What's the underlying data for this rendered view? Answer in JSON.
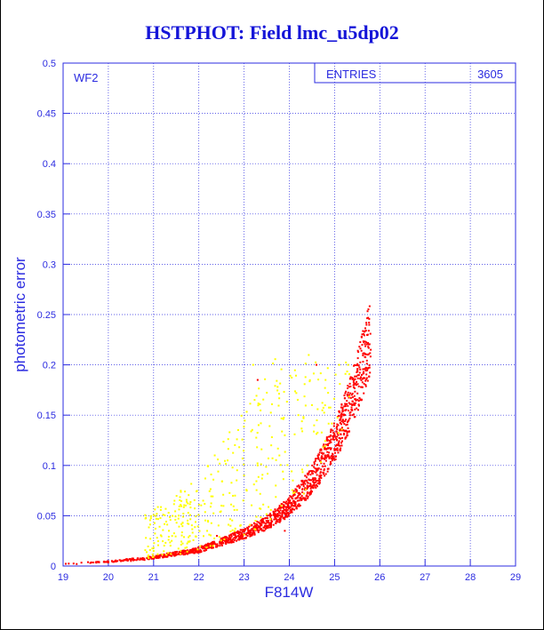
{
  "chart_data": {
    "type": "scatter",
    "title": "HSTPHOT: Field lmc_u5dp02",
    "xlabel": "F814W",
    "ylabel": "photometric error",
    "xlim": [
      19,
      29
    ],
    "ylim": [
      0,
      0.5
    ],
    "x_ticks": [
      "19",
      "20",
      "21",
      "22",
      "23",
      "24",
      "25",
      "26",
      "27",
      "28",
      "29"
    ],
    "y_ticks": [
      "0",
      "0.05",
      "0.1",
      "0.15",
      "0.2",
      "0.25",
      "0.3",
      "0.35",
      "0.4",
      "0.45",
      "0.5"
    ],
    "grid": true,
    "panel_label": "WF2",
    "stats_box": {
      "label": "ENTRIES",
      "value": "3605"
    },
    "series": [
      {
        "color": "#ff0000",
        "description_curve": [
          [
            19.0,
            0.002
          ],
          [
            20.0,
            0.004
          ],
          [
            21.0,
            0.008
          ],
          [
            22.0,
            0.015
          ],
          [
            23.0,
            0.03
          ],
          [
            23.5,
            0.04
          ],
          [
            24.0,
            0.055
          ],
          [
            24.5,
            0.08
          ],
          [
            25.0,
            0.115
          ],
          [
            25.3,
            0.145
          ],
          [
            25.5,
            0.17
          ],
          [
            25.7,
            0.2
          ],
          [
            25.8,
            0.215
          ]
        ],
        "points": [
          [
            19.3,
            0.002
          ],
          [
            19.6,
            0.003
          ],
          [
            19.9,
            0.004
          ],
          [
            20.2,
            0.005
          ],
          [
            20.5,
            0.005
          ],
          [
            20.8,
            0.006
          ],
          [
            21.1,
            0.008
          ],
          [
            21.4,
            0.01
          ],
          [
            21.7,
            0.012
          ],
          [
            22.0,
            0.015
          ],
          [
            22.3,
            0.018
          ],
          [
            22.6,
            0.022
          ],
          [
            22.9,
            0.027
          ],
          [
            23.2,
            0.033
          ],
          [
            23.5,
            0.04
          ],
          [
            23.8,
            0.05
          ],
          [
            24.1,
            0.06
          ],
          [
            24.4,
            0.073
          ],
          [
            24.7,
            0.09
          ],
          [
            25.0,
            0.115
          ],
          [
            25.2,
            0.135
          ],
          [
            25.4,
            0.16
          ],
          [
            25.6,
            0.19
          ],
          [
            25.8,
            0.215
          ],
          [
            23.3,
            0.185
          ],
          [
            23.9,
            0.035
          ],
          [
            22.4,
            0.03
          ],
          [
            24.6,
            0.2
          ]
        ]
      },
      {
        "color": "#ffff00",
        "points": [
          [
            21.0,
            0.015
          ],
          [
            21.4,
            0.025
          ],
          [
            21.8,
            0.03
          ],
          [
            22.2,
            0.045
          ],
          [
            22.5,
            0.06
          ],
          [
            22.8,
            0.07
          ],
          [
            23.0,
            0.09
          ],
          [
            23.3,
            0.1
          ],
          [
            23.6,
            0.12
          ],
          [
            23.9,
            0.13
          ],
          [
            24.2,
            0.15
          ],
          [
            24.5,
            0.16
          ],
          [
            24.8,
            0.185
          ],
          [
            25.1,
            0.2
          ],
          [
            23.2,
            0.2
          ],
          [
            22.7,
            0.04
          ],
          [
            23.7,
            0.08
          ],
          [
            24.4,
            0.1
          ],
          [
            25.3,
            0.2
          ],
          [
            21.7,
            0.018
          ]
        ]
      }
    ]
  }
}
